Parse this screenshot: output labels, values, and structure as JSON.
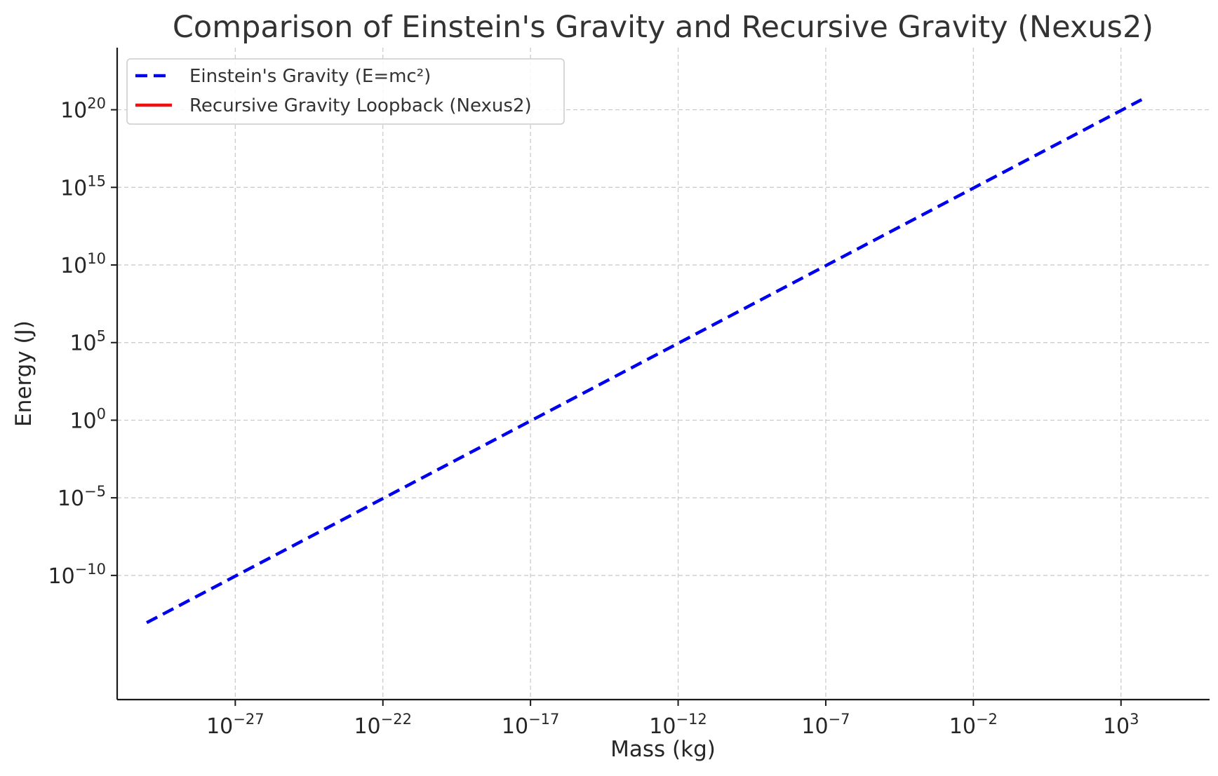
{
  "chart_data": {
    "type": "line",
    "title": "Comparison of Einstein's Gravity and Recursive Gravity (Nexus2)",
    "xlabel": "Mass (kg)",
    "ylabel": "Energy (J)",
    "x_scale": "log",
    "y_scale": "log",
    "xlim": [
      1e-31,
      1000000.0
    ],
    "ylim": [
      1e-18,
      1e+24
    ],
    "x_ticks": [
      {
        "base": "10",
        "exp": "−27",
        "value": 1e-27
      },
      {
        "base": "10",
        "exp": "−22",
        "value": 1e-22
      },
      {
        "base": "10",
        "exp": "−17",
        "value": 1e-17
      },
      {
        "base": "10",
        "exp": "−12",
        "value": 1e-12
      },
      {
        "base": "10",
        "exp": "−7",
        "value": 1e-07
      },
      {
        "base": "10",
        "exp": "−2",
        "value": 0.01
      },
      {
        "base": "10",
        "exp": "3",
        "value": 1000.0
      }
    ],
    "y_ticks": [
      {
        "base": "10",
        "exp": "−10",
        "value": 1e-10
      },
      {
        "base": "10",
        "exp": "−5",
        "value": 1e-05
      },
      {
        "base": "10",
        "exp": "0",
        "value": 1
      },
      {
        "base": "10",
        "exp": "5",
        "value": 100000.0
      },
      {
        "base": "10",
        "exp": "10",
        "value": 10000000000.0
      },
      {
        "base": "10",
        "exp": "15",
        "value": 1000000000000000.0
      },
      {
        "base": "10",
        "exp": "20",
        "value": 1e+20
      }
    ],
    "grid": true,
    "legend_position": "top-left",
    "series": [
      {
        "name": "Einstein's Gravity (E=mc²)",
        "color": "#0000ee",
        "style": "dashed",
        "x": [
          1e-30,
          5000.0
        ],
        "y": [
          9e-14,
          4.5e+20
        ]
      },
      {
        "name": "Recursive Gravity Loopback (Nexus2)",
        "color": "#ee1111",
        "style": "solid",
        "x": [],
        "y": []
      }
    ]
  }
}
